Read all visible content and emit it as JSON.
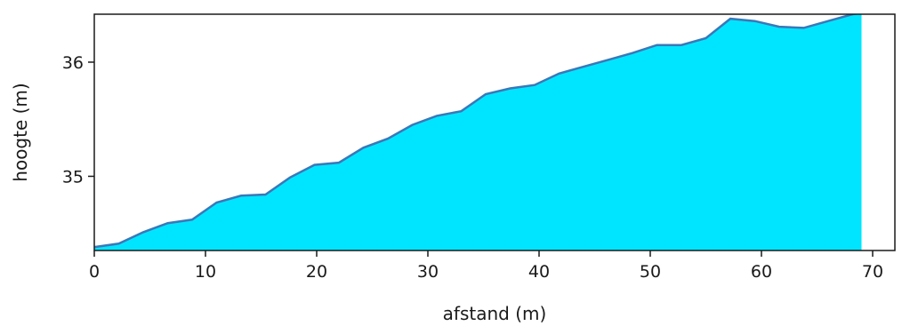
{
  "chart_data": {
    "type": "area",
    "xlabel": "afstand (m)",
    "ylabel": "hoogte (m)",
    "xlim": [
      0,
      72
    ],
    "ylim": [
      34.35,
      36.42
    ],
    "xticks": [
      0,
      10,
      20,
      30,
      40,
      50,
      60,
      70
    ],
    "yticks": [
      35,
      36
    ],
    "grid": false,
    "fill_color": "#00e5ff",
    "line_color": "#3a78b8",
    "x": [
      0,
      2.2,
      4.4,
      6.6,
      8.8,
      11,
      13.2,
      15.4,
      17.6,
      19.8,
      22,
      24.2,
      26.4,
      28.6,
      30.8,
      33,
      35.2,
      37.4,
      39.6,
      41.8,
      44,
      46.2,
      48.4,
      50.6,
      52.8,
      55,
      57.2,
      59.4,
      61.6,
      63.8,
      66,
      68.2,
      69
    ],
    "y": [
      34.38,
      34.41,
      34.51,
      34.59,
      34.62,
      34.77,
      34.83,
      34.84,
      34.99,
      35.1,
      35.12,
      35.25,
      35.33,
      35.45,
      35.53,
      35.57,
      35.72,
      35.77,
      35.8,
      35.9,
      35.96,
      36.02,
      36.08,
      36.15,
      36.15,
      36.21,
      36.38,
      36.36,
      36.31,
      36.3,
      36.36,
      36.42,
      36.43
    ]
  }
}
